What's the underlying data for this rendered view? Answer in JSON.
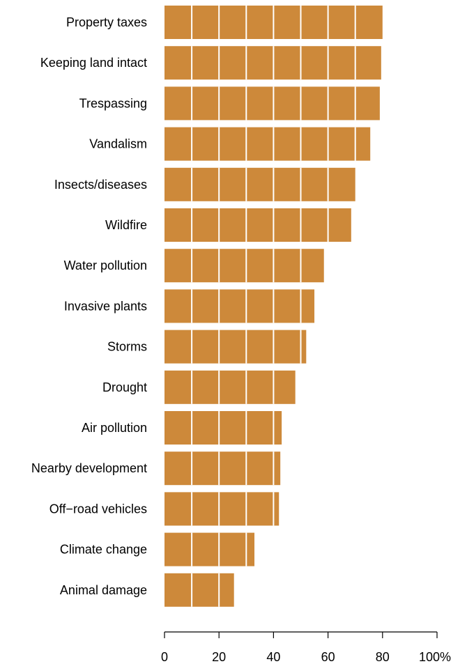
{
  "chart_data": {
    "type": "bar",
    "orientation": "horizontal",
    "categories": [
      "Property taxes",
      "Keeping land intact",
      "Trespassing",
      "Vandalism",
      "Insects/diseases",
      "Wildfire",
      "Water pollution",
      "Invasive plants",
      "Storms",
      "Drought",
      "Air pollution",
      "Nearby development",
      "Off−road vehicles",
      "Climate change",
      "Animal damage"
    ],
    "values": [
      80,
      79.5,
      79,
      75.5,
      70,
      68.5,
      58.5,
      55,
      52,
      48,
      43,
      42.5,
      42,
      33,
      25.5
    ],
    "xlim": [
      0,
      100
    ],
    "xticks": [
      0,
      20,
      40,
      60,
      80,
      100
    ],
    "xtick_labels": [
      "0",
      "20",
      "40",
      "60",
      "80",
      "100%"
    ],
    "grid": true,
    "grid_values": [
      10,
      20,
      30,
      40,
      50,
      60,
      70,
      80,
      90
    ],
    "bar_color": "#cd893a",
    "grid_color": "#ffffff",
    "legend": "none"
  }
}
